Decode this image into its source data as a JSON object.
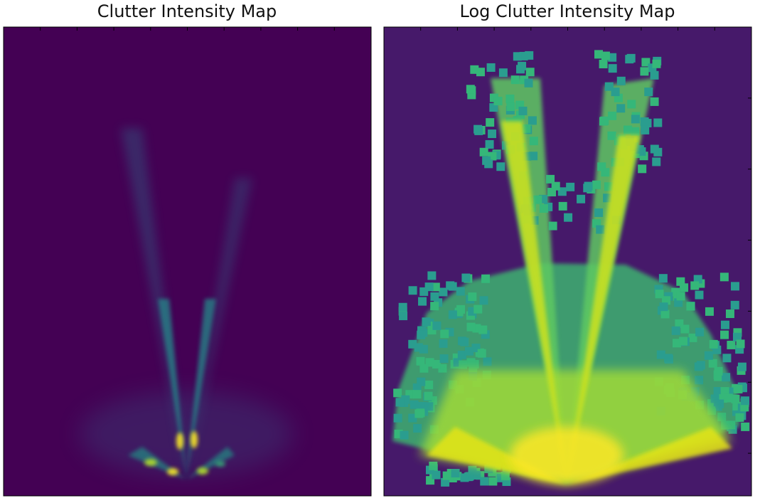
{
  "chart_data": [
    {
      "type": "heatmap",
      "title": "Clutter Intensity Map",
      "colormap": "viridis",
      "scale": "linear",
      "xlabel": "",
      "ylabel": "",
      "tick_labels_shown": false,
      "x_tick_count": 9,
      "y_tick_count": 0,
      "grid": false,
      "background_color": "#440154"
    },
    {
      "type": "heatmap",
      "title": "Log Clutter Intensity Map",
      "colormap": "viridis",
      "scale": "log",
      "xlabel": "",
      "ylabel": "",
      "tick_labels_shown": false,
      "x_tick_count": 9,
      "y_tick_count": 6,
      "grid": false,
      "background_color": "#46196a"
    }
  ]
}
